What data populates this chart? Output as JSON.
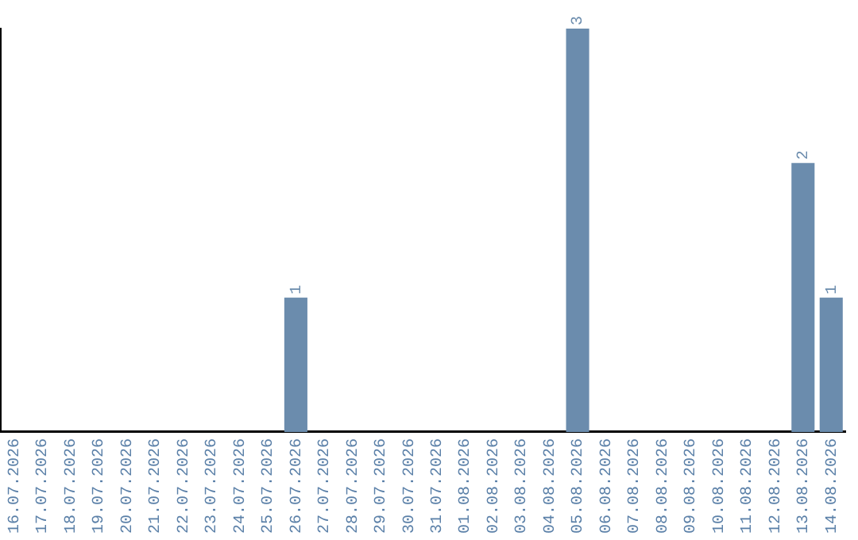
{
  "chart_data": {
    "type": "bar",
    "categories": [
      "16.07.2026",
      "17.07.2026",
      "18.07.2026",
      "19.07.2026",
      "20.07.2026",
      "21.07.2026",
      "22.07.2026",
      "23.07.2026",
      "24.07.2026",
      "25.07.2026",
      "26.07.2026",
      "27.07.2026",
      "28.07.2026",
      "29.07.2026",
      "30.07.2026",
      "31.07.2026",
      "01.08.2026",
      "02.08.2026",
      "03.08.2026",
      "04.08.2026",
      "05.08.2026",
      "06.08.2026",
      "07.08.2026",
      "08.08.2026",
      "09.08.2026",
      "10.08.2026",
      "11.08.2026",
      "12.08.2026",
      "13.08.2026",
      "14.08.2026"
    ],
    "values": [
      0,
      0,
      0,
      0,
      0,
      0,
      0,
      0,
      0,
      0,
      1,
      0,
      0,
      0,
      0,
      0,
      0,
      0,
      0,
      0,
      3,
      0,
      0,
      0,
      0,
      0,
      0,
      0,
      2,
      1
    ],
    "value_labels": [
      null,
      null,
      null,
      null,
      null,
      null,
      null,
      null,
      null,
      null,
      "1",
      null,
      null,
      null,
      null,
      null,
      null,
      null,
      null,
      null,
      "3",
      null,
      null,
      null,
      null,
      null,
      null,
      null,
      "2",
      "1"
    ],
    "color": "#6b8cad",
    "grid": false,
    "legend": false,
    "tick_labels": "x"
  }
}
